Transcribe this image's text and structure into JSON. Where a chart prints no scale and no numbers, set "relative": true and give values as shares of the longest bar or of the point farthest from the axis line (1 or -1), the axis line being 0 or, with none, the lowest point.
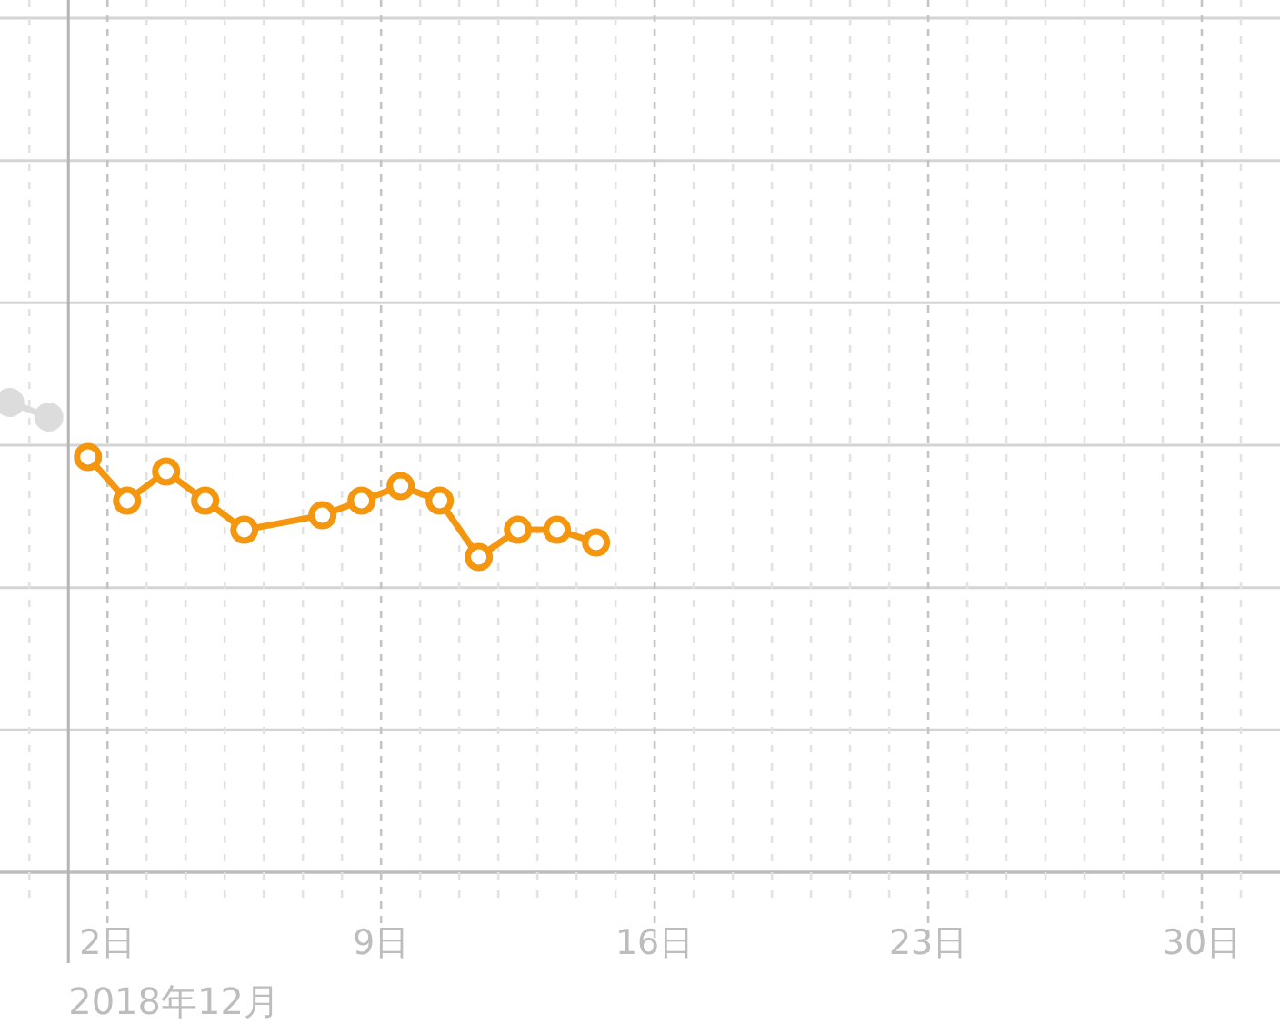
{
  "chart_data": {
    "type": "line",
    "relative": true,
    "xlabel": "2018年12月",
    "xlim": [
      "2018-11-29T06:00",
      "2019-01-01T00:00"
    ],
    "xticks": [
      {
        "value": "2018-11-30",
        "label": null
      },
      {
        "value": "2018-12-02",
        "label": "2日"
      },
      {
        "value": "2018-12-03",
        "label": null
      },
      {
        "value": "2018-12-04",
        "label": null
      },
      {
        "value": "2018-12-05",
        "label": null
      },
      {
        "value": "2018-12-06",
        "label": null
      },
      {
        "value": "2018-12-07",
        "label": null
      },
      {
        "value": "2018-12-08",
        "label": null
      },
      {
        "value": "2018-12-09",
        "label": "9日"
      },
      {
        "value": "2018-12-10",
        "label": null
      },
      {
        "value": "2018-12-11",
        "label": null
      },
      {
        "value": "2018-12-12",
        "label": null
      },
      {
        "value": "2018-12-13",
        "label": null
      },
      {
        "value": "2018-12-14",
        "label": null
      },
      {
        "value": "2018-12-15",
        "label": null
      },
      {
        "value": "2018-12-16",
        "label": "16日"
      },
      {
        "value": "2018-12-17",
        "label": null
      },
      {
        "value": "2018-12-18",
        "label": null
      },
      {
        "value": "2018-12-19",
        "label": null
      },
      {
        "value": "2018-12-20",
        "label": null
      },
      {
        "value": "2018-12-21",
        "label": null
      },
      {
        "value": "2018-12-22",
        "label": null
      },
      {
        "value": "2018-12-23",
        "label": "23日"
      },
      {
        "value": "2018-12-24",
        "label": null
      },
      {
        "value": "2018-12-25",
        "label": null
      },
      {
        "value": "2018-12-26",
        "label": null
      },
      {
        "value": "2018-12-27",
        "label": null
      },
      {
        "value": "2018-12-28",
        "label": null
      },
      {
        "value": "2018-12-29",
        "label": null
      },
      {
        "value": "2018-12-30",
        "label": "30日"
      },
      {
        "value": "2018-12-31",
        "label": null
      }
    ],
    "grid": true,
    "marker": "circle",
    "ref_lines": [
      {
        "axis": "x",
        "value": "2018-12-01",
        "color": "#b5b5b5",
        "line_style": "solid"
      }
    ],
    "series": [
      {
        "color": "#dcdcdc",
        "x": [
          "2018-11-29T12:00",
          "2018-11-30T12:00"
        ],
        "values": [
          1,
          0.969
        ]
      },
      {
        "color": "#f5960f",
        "x": [
          "2018-12-01T12:00",
          "2018-12-02T12:00",
          "2018-12-03T12:00",
          "2018-12-04T12:00",
          "2018-12-05T12:00",
          "2018-12-07T12:00",
          "2018-12-08T12:00",
          "2018-12-09T12:00",
          "2018-12-10T12:00",
          "2018-12-11T12:00",
          "2018-12-12T12:00",
          "2018-12-13T12:00",
          "2018-12-14T12:00"
        ],
        "values": [
          0.884,
          0.791,
          0.853,
          0.791,
          0.729,
          0.76,
          0.791,
          0.822,
          0.791,
          0.671,
          0.729,
          0.729,
          0.702
        ]
      }
    ]
  }
}
